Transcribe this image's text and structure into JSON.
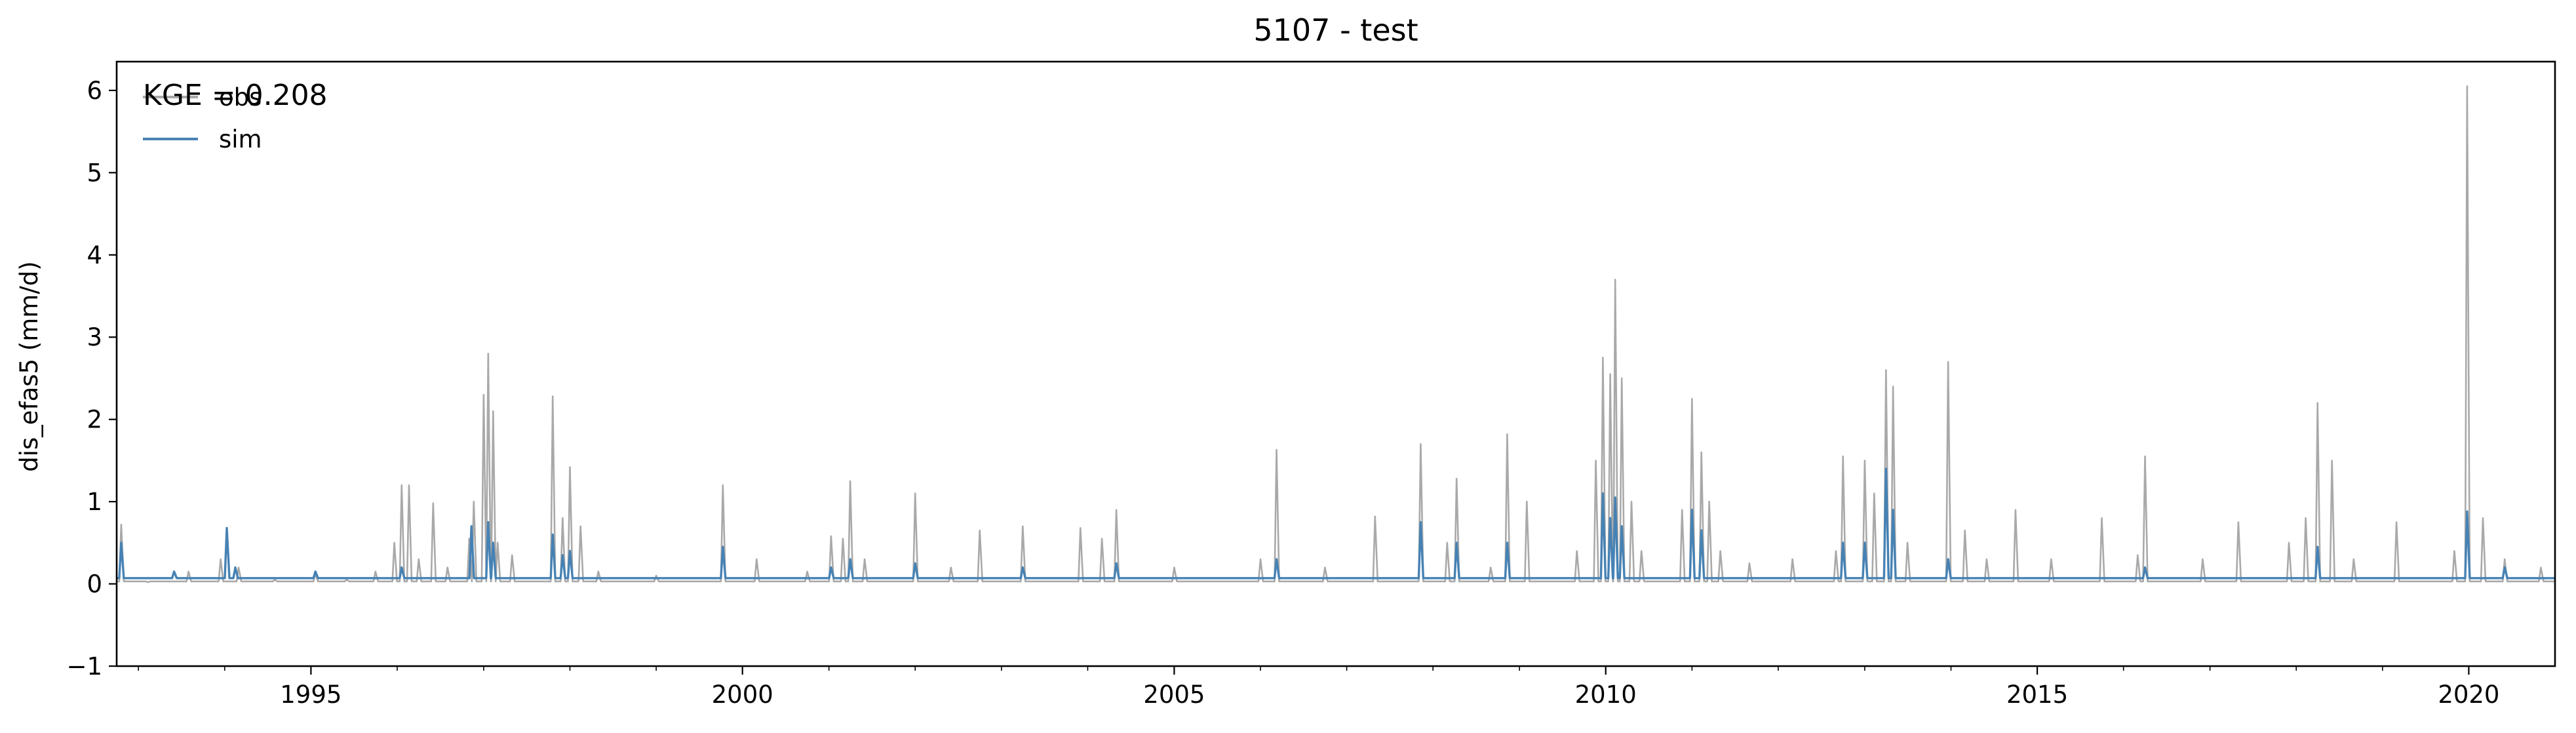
{
  "chart_data": {
    "type": "line",
    "title": "5107 - test",
    "xlabel": "",
    "ylabel": "dis_efas5 (mm/d)",
    "xlim": [
      "1992-10-01",
      "2020-12-31"
    ],
    "ylim": [
      -1,
      6.35
    ],
    "x_ticks": [
      "1995",
      "2000",
      "2005",
      "2010",
      "2015",
      "2020"
    ],
    "y_ticks": [
      -1,
      0,
      1,
      2,
      3,
      4,
      5,
      6
    ],
    "y_tick_labels": [
      "−1",
      "0",
      "1",
      "2",
      "3",
      "4",
      "5",
      "6"
    ],
    "legend": {
      "placement": "top-left",
      "entries": [
        "obs",
        "sim"
      ]
    },
    "annotation": "KGE = 0.208",
    "grid": false,
    "baseline": {
      "obs": 0.03,
      "sim": 0.07
    },
    "series": [
      {
        "name": "obs",
        "color": "#a9a9a9",
        "points": [
          [
            "1992-10-01",
            0.03
          ],
          [
            "1992-10-20",
            0.72
          ],
          [
            "1993-02-10",
            0.02
          ],
          [
            "1993-08-01",
            0.15
          ],
          [
            "1993-12-15",
            0.3
          ],
          [
            "1994-03-01",
            0.2
          ],
          [
            "1994-08-01",
            0.05
          ],
          [
            "1995-01-20",
            0.12
          ],
          [
            "1995-06-01",
            0.05
          ],
          [
            "1995-10-01",
            0.15
          ],
          [
            "1995-12-20",
            0.5
          ],
          [
            "1996-01-20",
            1.2
          ],
          [
            "1996-02-20",
            1.2
          ],
          [
            "1996-04-01",
            0.3
          ],
          [
            "1996-06-01",
            0.98
          ],
          [
            "1996-08-01",
            0.2
          ],
          [
            "1996-11-01",
            0.55
          ],
          [
            "1996-11-20",
            1.0
          ],
          [
            "1997-01-01",
            2.3
          ],
          [
            "1997-01-20",
            2.8
          ],
          [
            "1997-02-10",
            2.1
          ],
          [
            "1997-03-01",
            0.5
          ],
          [
            "1997-05-01",
            0.35
          ],
          [
            "1997-10-20",
            2.28
          ],
          [
            "1997-12-01",
            0.8
          ],
          [
            "1998-01-01",
            1.42
          ],
          [
            "1998-02-15",
            0.7
          ],
          [
            "1998-05-01",
            0.15
          ],
          [
            "1999-01-01",
            0.1
          ],
          [
            "1999-10-10",
            1.2
          ],
          [
            "2000-03-01",
            0.3
          ],
          [
            "2000-10-01",
            0.15
          ],
          [
            "2001-01-10",
            0.58
          ],
          [
            "2001-03-01",
            0.55
          ],
          [
            "2001-04-01",
            1.25
          ],
          [
            "2001-06-01",
            0.3
          ],
          [
            "2002-01-01",
            1.1
          ],
          [
            "2002-06-01",
            0.2
          ],
          [
            "2002-10-01",
            0.65
          ],
          [
            "2003-04-01",
            0.7
          ],
          [
            "2003-12-01",
            0.68
          ],
          [
            "2004-03-01",
            0.55
          ],
          [
            "2004-05-01",
            0.9
          ],
          [
            "2005-01-01",
            0.2
          ],
          [
            "2006-01-01",
            0.3
          ],
          [
            "2006-03-10",
            1.63
          ],
          [
            "2006-10-01",
            0.2
          ],
          [
            "2007-05-01",
            0.82
          ],
          [
            "2007-11-10",
            1.7
          ],
          [
            "2008-03-01",
            0.5
          ],
          [
            "2008-04-10",
            1.28
          ],
          [
            "2008-09-01",
            0.2
          ],
          [
            "2008-11-10",
            1.82
          ],
          [
            "2009-02-01",
            1.0
          ],
          [
            "2009-09-01",
            0.4
          ],
          [
            "2009-11-20",
            1.5
          ],
          [
            "2009-12-20",
            2.75
          ],
          [
            "2010-01-20",
            2.55
          ],
          [
            "2010-02-10",
            3.7
          ],
          [
            "2010-03-10",
            2.5
          ],
          [
            "2010-04-20",
            1.0
          ],
          [
            "2010-06-01",
            0.4
          ],
          [
            "2010-11-20",
            0.9
          ],
          [
            "2011-01-01",
            2.25
          ],
          [
            "2011-02-10",
            1.6
          ],
          [
            "2011-03-15",
            1.0
          ],
          [
            "2011-05-01",
            0.4
          ],
          [
            "2011-09-01",
            0.25
          ],
          [
            "2012-03-01",
            0.3
          ],
          [
            "2012-09-01",
            0.4
          ],
          [
            "2012-10-01",
            1.55
          ],
          [
            "2013-01-01",
            1.5
          ],
          [
            "2013-02-10",
            1.1
          ],
          [
            "2013-04-01",
            2.6
          ],
          [
            "2013-05-01",
            2.4
          ],
          [
            "2013-07-01",
            0.5
          ],
          [
            "2013-12-20",
            2.7
          ],
          [
            "2014-03-01",
            0.65
          ],
          [
            "2014-06-01",
            0.3
          ],
          [
            "2014-10-01",
            0.9
          ],
          [
            "2015-03-01",
            0.3
          ],
          [
            "2015-10-01",
            0.8
          ],
          [
            "2016-03-01",
            0.35
          ],
          [
            "2016-04-01",
            1.55
          ],
          [
            "2016-12-01",
            0.3
          ],
          [
            "2017-05-01",
            0.75
          ],
          [
            "2017-12-01",
            0.5
          ],
          [
            "2018-02-10",
            0.8
          ],
          [
            "2018-04-01",
            2.2
          ],
          [
            "2018-06-01",
            1.5
          ],
          [
            "2018-09-01",
            0.3
          ],
          [
            "2019-03-01",
            0.75
          ],
          [
            "2019-11-01",
            0.4
          ],
          [
            "2019-12-25",
            6.05
          ],
          [
            "2020-03-01",
            0.8
          ],
          [
            "2020-06-01",
            0.3
          ],
          [
            "2020-11-01",
            0.2
          ]
        ]
      },
      {
        "name": "sim",
        "color": "#4682b4",
        "points": [
          [
            "1992-10-20",
            0.5
          ],
          [
            "1993-06-01",
            0.15
          ],
          [
            "1994-01-10",
            0.68
          ],
          [
            "1994-02-15",
            0.2
          ],
          [
            "1995-01-20",
            0.15
          ],
          [
            "1996-01-20",
            0.2
          ],
          [
            "1996-11-10",
            0.7
          ],
          [
            "1997-01-20",
            0.75
          ],
          [
            "1997-02-10",
            0.5
          ],
          [
            "1997-10-20",
            0.6
          ],
          [
            "1997-12-01",
            0.35
          ],
          [
            "1998-01-01",
            0.4
          ],
          [
            "1999-10-10",
            0.45
          ],
          [
            "2001-01-10",
            0.2
          ],
          [
            "2001-04-01",
            0.3
          ],
          [
            "2002-01-01",
            0.25
          ],
          [
            "2003-04-01",
            0.2
          ],
          [
            "2004-05-01",
            0.25
          ],
          [
            "2006-03-10",
            0.3
          ],
          [
            "2007-11-10",
            0.75
          ],
          [
            "2008-04-10",
            0.5
          ],
          [
            "2008-11-10",
            0.5
          ],
          [
            "2009-12-20",
            1.1
          ],
          [
            "2010-01-20",
            0.8
          ],
          [
            "2010-02-10",
            1.05
          ],
          [
            "2010-03-10",
            0.7
          ],
          [
            "2011-01-01",
            0.9
          ],
          [
            "2011-02-10",
            0.65
          ],
          [
            "2012-10-01",
            0.5
          ],
          [
            "2013-01-01",
            0.5
          ],
          [
            "2013-04-01",
            1.4
          ],
          [
            "2013-05-01",
            0.9
          ],
          [
            "2013-12-20",
            0.3
          ],
          [
            "2016-04-01",
            0.2
          ],
          [
            "2018-04-01",
            0.45
          ],
          [
            "2019-12-25",
            0.88
          ],
          [
            "2020-06-01",
            0.2
          ]
        ]
      }
    ]
  }
}
